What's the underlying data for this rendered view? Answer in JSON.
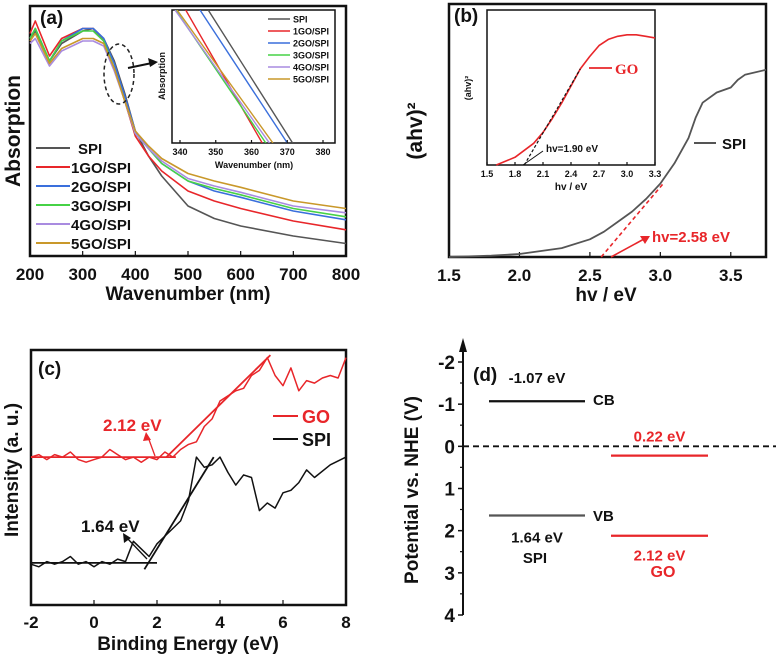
{
  "colors": {
    "SPI": "#555555",
    "1GO/SPI": "#e8262a",
    "2GO/SPI": "#3a6fdc",
    "3GO/SPI": "#46d246",
    "4GO/SPI": "#a98be0",
    "5GO/SPI": "#c9982a",
    "GO": "#e8262a",
    "black": "#111111"
  },
  "chart_data": [
    {
      "panel": "(a)",
      "type": "line",
      "xlabel": "Wavenumber (nm)",
      "ylabel": "Absorption",
      "xlim": [
        200,
        800
      ],
      "ylim": [
        0,
        1
      ],
      "xticks": [
        "200",
        "300",
        "400",
        "500",
        "600",
        "700",
        "800"
      ],
      "legend": [
        "SPI",
        "1GO/SPI",
        "2GO/SPI",
        "3GO/SPI",
        "4GO/SPI",
        "5GO/SPI"
      ],
      "legend_position": "bottom-left",
      "x": [
        200,
        210,
        237,
        260,
        300,
        320,
        340,
        360,
        380,
        400,
        425,
        450,
        500,
        550,
        600,
        700,
        800
      ],
      "series": [
        {
          "name": "SPI",
          "values": [
            0.87,
            0.9,
            0.78,
            0.85,
            0.9,
            0.91,
            0.87,
            0.78,
            0.65,
            0.5,
            0.4,
            0.32,
            0.2,
            0.15,
            0.12,
            0.08,
            0.05
          ]
        },
        {
          "name": "1GO/SPI",
          "values": [
            0.89,
            0.94,
            0.8,
            0.87,
            0.91,
            0.91,
            0.86,
            0.75,
            0.62,
            0.48,
            0.4,
            0.34,
            0.26,
            0.22,
            0.19,
            0.14,
            0.105
          ]
        },
        {
          "name": "2GO/SPI",
          "values": [
            0.87,
            0.91,
            0.78,
            0.86,
            0.91,
            0.91,
            0.87,
            0.77,
            0.64,
            0.5,
            0.43,
            0.37,
            0.3,
            0.26,
            0.235,
            0.18,
            0.145
          ]
        },
        {
          "name": "3GO/SPI",
          "values": [
            0.87,
            0.91,
            0.78,
            0.86,
            0.9,
            0.9,
            0.86,
            0.75,
            0.62,
            0.49,
            0.43,
            0.37,
            0.3,
            0.27,
            0.245,
            0.19,
            0.157
          ]
        },
        {
          "name": "4GO/SPI",
          "values": [
            0.85,
            0.87,
            0.76,
            0.82,
            0.86,
            0.86,
            0.84,
            0.74,
            0.62,
            0.49,
            0.43,
            0.38,
            0.31,
            0.28,
            0.255,
            0.2,
            0.173
          ]
        },
        {
          "name": "5GO/SPI",
          "values": [
            0.86,
            0.89,
            0.77,
            0.83,
            0.87,
            0.87,
            0.85,
            0.75,
            0.62,
            0.5,
            0.44,
            0.39,
            0.33,
            0.3,
            0.275,
            0.22,
            0.19
          ]
        }
      ],
      "inset": {
        "xlabel": "Wavenumber (nm)",
        "ylabel": "Absorption",
        "xlim": [
          337.8,
          387
        ],
        "ylim": [
          0,
          1
        ],
        "xticks": [
          "340",
          "350",
          "360",
          "370",
          "380"
        ],
        "legend": [
          "SPI",
          "1GO/SPI",
          "2GO/SPI",
          "3GO/SPI",
          "4GO/SPI",
          "5GO/SPI"
        ],
        "series": [
          {
            "name": "SPI",
            "x": [
              347.9,
              371.5
            ],
            "values": [
              1,
              0
            ]
          },
          {
            "name": "1GO/SPI",
            "x": [
              341.6,
              363
            ],
            "values": [
              1,
              0
            ]
          },
          {
            "name": "2GO/SPI",
            "x": [
              345.6,
              370
            ],
            "values": [
              1,
              0
            ]
          },
          {
            "name": "3GO/SPI",
            "x": [
              338.8,
              364
            ],
            "values": [
              1,
              0
            ]
          },
          {
            "name": "4GO/SPI",
            "x": [
              338.6,
              365
            ],
            "values": [
              1,
              0
            ]
          },
          {
            "name": "5GO/SPI",
            "x": [
              339.2,
              366
            ],
            "values": [
              1,
              0
            ]
          }
        ]
      }
    },
    {
      "panel": "(b)",
      "type": "line",
      "xlabel": "hv / eV",
      "ylabel": "(ahv)²",
      "xlim": [
        1.5,
        3.75
      ],
      "ylim": [
        0,
        1
      ],
      "xticks": [
        "1.5",
        "2.0",
        "2.5",
        "3.0",
        "3.5"
      ],
      "legend": [
        "SPI"
      ],
      "legend_position": "right",
      "series": [
        {
          "name": "SPI",
          "x": [
            1.5,
            1.8,
            2.0,
            2.3,
            2.5,
            2.6,
            2.7,
            2.8,
            2.9,
            3.0,
            3.1,
            3.2,
            3.25,
            3.3,
            3.4,
            3.5,
            3.55,
            3.6,
            3.75
          ],
          "values": [
            0,
            0.005,
            0.012,
            0.035,
            0.07,
            0.1,
            0.14,
            0.18,
            0.23,
            0.29,
            0.37,
            0.47,
            0.55,
            0.61,
            0.65,
            0.67,
            0.7,
            0.72,
            0.74
          ]
        }
      ],
      "tangent": {
        "x": [
          2.58,
          3.02
        ],
        "values": [
          0,
          0.29
        ]
      },
      "annotation": "hv=2.58 eV",
      "inset": {
        "xlabel": "hv / eV",
        "ylabel": "(ahv)²",
        "xlim": [
          1.5,
          3.3
        ],
        "ylim": [
          0,
          1
        ],
        "xticks": [
          "1.5",
          "1.8",
          "2.1",
          "2.4",
          "2.7",
          "3.0",
          "3.3"
        ],
        "legend": [
          "GO"
        ],
        "series": [
          {
            "name": "GO",
            "x": [
              1.6,
              1.8,
              2.0,
              2.1,
              2.2,
              2.3,
              2.4,
              2.5,
              2.6,
              2.7,
              2.8,
              2.9,
              3.0,
              3.1,
              3.2,
              3.3
            ],
            "values": [
              0,
              0.05,
              0.14,
              0.21,
              0.3,
              0.4,
              0.51,
              0.62,
              0.7,
              0.77,
              0.81,
              0.83,
              0.84,
              0.84,
              0.83,
              0.82
            ]
          }
        ],
        "tangent": {
          "x": [
            1.9,
            2.5
          ],
          "values": [
            0,
            0.62
          ]
        },
        "annotation": "hv=1.90 eV"
      }
    },
    {
      "panel": "(c)",
      "type": "line",
      "xlabel": "Binding Energy (eV)",
      "ylabel": "Intensity (a. u.)",
      "xlim": [
        -2,
        8
      ],
      "ylim": [
        0,
        1
      ],
      "xticks": [
        "-2",
        "0",
        "2",
        "4",
        "6",
        "8"
      ],
      "legend": [
        "GO",
        "SPI"
      ],
      "legend_position": "right",
      "series": [
        {
          "name": "GO",
          "x": [
            -2,
            -1.75,
            -1.5,
            -1.25,
            -1,
            -0.75,
            -0.5,
            -0.25,
            0,
            0.25,
            0.5,
            0.75,
            1,
            1.25,
            1.5,
            1.75,
            2,
            2.25,
            2.5,
            2.75,
            3,
            3.25,
            3.5,
            3.75,
            4,
            4.25,
            4.5,
            4.75,
            5,
            5.25,
            5.5,
            5.75,
            6,
            6.25,
            6.5,
            6.75,
            7,
            7.25,
            7.5,
            7.75,
            8
          ],
          "values": [
            0.58,
            0.59,
            0.57,
            0.59,
            0.58,
            0.6,
            0.57,
            0.56,
            0.57,
            0.58,
            0.61,
            0.59,
            0.57,
            0.58,
            0.56,
            0.58,
            0.57,
            0.6,
            0.58,
            0.61,
            0.63,
            0.64,
            0.7,
            0.73,
            0.8,
            0.82,
            0.84,
            0.85,
            0.9,
            0.92,
            0.97,
            0.9,
            0.86,
            0.93,
            0.84,
            0.88,
            0.87,
            0.89,
            0.9,
            0.89,
            0.97
          ]
        },
        {
          "name": "SPI",
          "x": [
            -2,
            -1.75,
            -1.5,
            -1.25,
            -1,
            -0.75,
            -0.5,
            -0.25,
            0,
            0.25,
            0.5,
            0.75,
            1,
            1.25,
            1.5,
            1.75,
            2,
            2.25,
            2.5,
            2.75,
            3,
            3.25,
            3.5,
            3.75,
            4,
            4.25,
            4.5,
            4.75,
            5,
            5.25,
            5.5,
            5.75,
            6,
            6.25,
            6.5,
            6.75,
            7,
            7.5,
            8
          ],
          "values": [
            0.16,
            0.15,
            0.17,
            0.16,
            0.17,
            0.19,
            0.16,
            0.17,
            0.15,
            0.17,
            0.16,
            0.18,
            0.17,
            0.25,
            0.22,
            0.19,
            0.24,
            0.27,
            0.3,
            0.33,
            0.41,
            0.58,
            0.54,
            0.55,
            0.58,
            0.52,
            0.47,
            0.51,
            0.5,
            0.37,
            0.4,
            0.38,
            0.44,
            0.45,
            0.48,
            0.53,
            0.5,
            0.55,
            0.58
          ]
        }
      ],
      "fits": [
        {
          "name": "GO",
          "lines": [
            {
              "x": [
                -2,
                2.6
              ],
              "values": [
                0.58,
                0.58
              ]
            },
            {
              "x": [
                2.3,
                5.6
              ],
              "values": [
                0.58,
                0.98
              ]
            }
          ]
        },
        {
          "name": "SPI",
          "lines": [
            {
              "x": [
                -2,
                2
              ],
              "values": [
                0.165,
                0.165
              ]
            },
            {
              "x": [
                1.6,
                3.8
              ],
              "values": [
                0.14,
                0.58
              ]
            }
          ]
        }
      ],
      "annotations": [
        "2.12 eV",
        "1.64 eV"
      ]
    },
    {
      "panel": "(d)",
      "type": "bar",
      "ylabel": "Potential vs. NHE (V)",
      "ylim": [
        -2,
        4
      ],
      "y_inverted": true,
      "yticks": [
        "-2",
        "-1",
        "0",
        "1",
        "2",
        "3",
        "4"
      ],
      "levels": [
        {
          "material": "SPI",
          "band": "CB",
          "value": -1.07,
          "label": "-1.07 eV"
        },
        {
          "material": "SPI",
          "band": "VB",
          "value": 1.64,
          "label": "1.64 eV"
        },
        {
          "material": "GO",
          "band": "CB",
          "value": 0.22,
          "label": "0.22 eV"
        },
        {
          "material": "GO",
          "band": "VB",
          "value": 2.12,
          "label": "2.12 eV"
        }
      ],
      "band_labels": [
        "CB",
        "VB"
      ],
      "material_labels": [
        "SPI",
        "GO"
      ]
    }
  ]
}
